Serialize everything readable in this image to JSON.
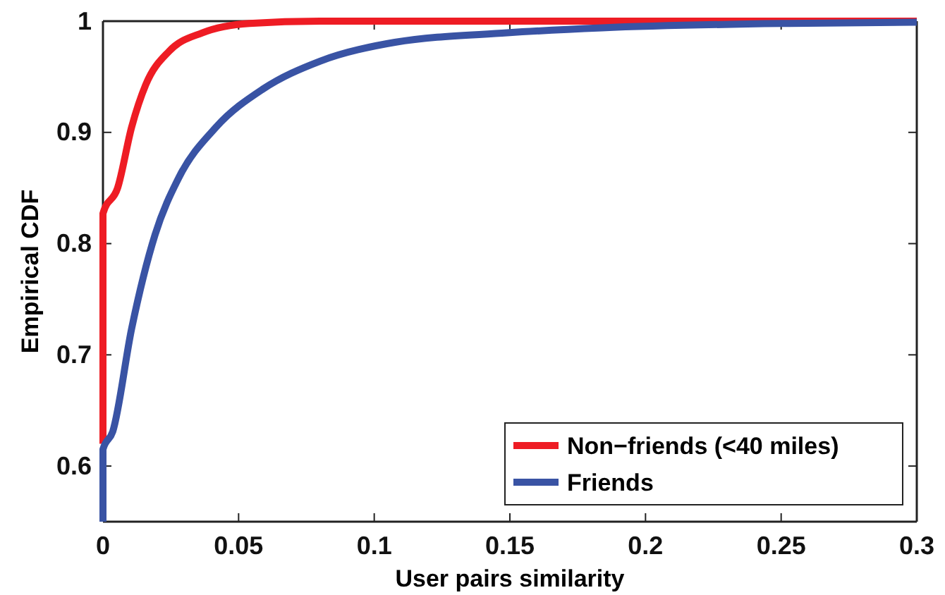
{
  "chart_data": {
    "type": "line",
    "xlabel": "User pairs similarity",
    "ylabel": "Empirical CDF",
    "xlim": [
      0,
      0.3
    ],
    "xticks": [
      0,
      0.05,
      0.1,
      0.15,
      0.2,
      0.25,
      0.3
    ],
    "ylim": [
      0.55,
      1
    ],
    "yticks": [
      0.6,
      0.7,
      0.8,
      0.9,
      1
    ],
    "legend": "bottom right",
    "grid": false,
    "line_style": "solid",
    "marker": "none",
    "series": [
      {
        "name": "Non−friends (<40 miles)",
        "color": "#ee1c24",
        "x": [
          0,
          0,
          0.0054,
          0.0106,
          0.0158,
          0.0244,
          0.0366,
          0.054,
          0.08,
          0.3
        ],
        "values": [
          0.62,
          0.827,
          0.85,
          0.905,
          0.943,
          0.973,
          0.9895,
          0.998,
          1,
          1
        ]
      },
      {
        "name": "Friends",
        "color": "#3953a4",
        "x": [
          0,
          0,
          0.0036,
          0.0106,
          0.0192,
          0.0279,
          0.0418,
          0.059,
          0.08,
          0.1076,
          0.149,
          0.184,
          0.253,
          0.3
        ],
        "values": [
          0.55,
          0.615,
          0.631,
          0.724,
          0.808,
          0.859,
          0.905,
          0.939,
          0.964,
          0.981,
          0.9895,
          0.994,
          0.998,
          0.999
        ]
      }
    ]
  }
}
